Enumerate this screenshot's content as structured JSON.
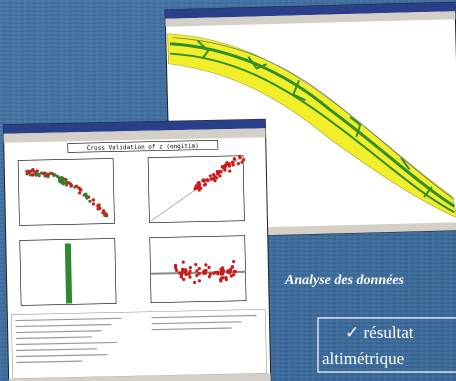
{
  "slide": {
    "caption": "Analyse des données",
    "result_box": {
      "line1": "✓ résultat",
      "line2": "altimétrique"
    }
  },
  "screenshot": {
    "plot_title": "Cross Validation of z (ongitim)"
  }
}
